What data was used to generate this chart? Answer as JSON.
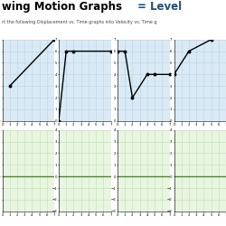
{
  "title1": "wing Motion Graphs",
  "title2": "= Level",
  "subtitle": "rt the following Displacement vs. Time graphs into Velocity vs. Time g",
  "title_color1": "#000000",
  "title_color2": "#1f4e79",
  "bg_blue": "#daeaf5",
  "bg_green": "#e8f5e0",
  "grid_blue": "#b8d4e8",
  "grid_green": "#c2e0b0",
  "zero_line_color": "#4a8a2a",
  "line_color": "#000000",
  "graphs": [
    {
      "x": [
        1,
        7
      ],
      "y": [
        3,
        7
      ]
    },
    {
      "x": [
        0,
        1,
        2,
        7
      ],
      "y": [
        0,
        6,
        6,
        6
      ]
    },
    {
      "x": [
        0,
        1,
        2,
        4,
        5,
        7
      ],
      "y": [
        6,
        6,
        2,
        4,
        4,
        4
      ]
    },
    {
      "x": [
        0,
        2,
        5
      ],
      "y": [
        4,
        6,
        7
      ]
    }
  ],
  "ylim_disp": [
    0,
    7
  ],
  "xlim_disp": [
    0,
    7
  ],
  "ylim_vel": [
    -3,
    4
  ],
  "xlim_vel": [
    0,
    7
  ],
  "disp_yticks": [
    0,
    1,
    2,
    3,
    4,
    5,
    6,
    7
  ],
  "vel_yticks": [
    -3,
    -2,
    -1,
    0,
    1,
    2,
    3,
    4
  ],
  "xticks": [
    0,
    1,
    2,
    3,
    4,
    5,
    6,
    7
  ]
}
